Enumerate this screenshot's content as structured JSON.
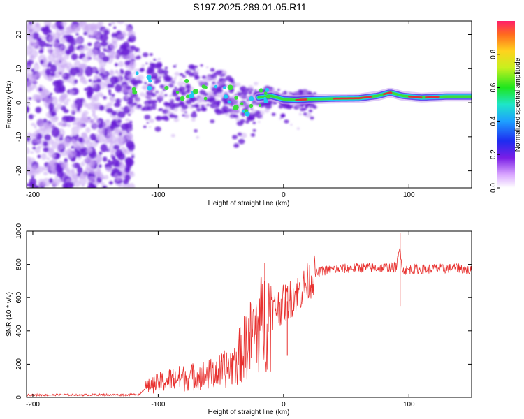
{
  "page_title": "S197.2025.289.01.05.R11",
  "colors": {
    "spectrogram_blob": "#6a1fd6",
    "spectrogram_light": "#c9a8f2",
    "ridge_green": "#3cdc3c",
    "ridge_cyan": "#22c8f0",
    "ridge_red": "#e0303a",
    "snr_line": "#e8312f"
  },
  "chart_data": [
    {
      "type": "heatmap",
      "title": "S197.2025.289.01.05.R11",
      "xlabel": "Height of straight line (km)",
      "ylabel": "Frequency (Hz)",
      "xlim": [
        -205,
        150
      ],
      "ylim": [
        -25,
        24
      ],
      "x_ticks": [
        "-200",
        "-100",
        "0",
        "100"
      ],
      "x_tick_values": [
        -200,
        -100,
        0,
        100
      ],
      "y_ticks": [
        "20",
        "10",
        "0",
        "-10",
        "-20"
      ],
      "y_tick_values": [
        20,
        10,
        0,
        -10,
        -20
      ],
      "colorbar": {
        "label": "Normalized spectral amplitude",
        "range": [
          0,
          1
        ],
        "ticks": [
          "0.0",
          "0.2",
          "0.4",
          "0.6",
          "0.8"
        ],
        "tick_values": [
          0.0,
          0.2,
          0.4,
          0.6,
          0.8
        ]
      },
      "ridge": [
        {
          "x": -120,
          "y": 6.0
        },
        {
          "x": -105,
          "y": 5.0
        },
        {
          "x": -90,
          "y": 3.0
        },
        {
          "x": -75,
          "y": 3.5
        },
        {
          "x": -60,
          "y": 4.0
        },
        {
          "x": -50,
          "y": 3.5
        },
        {
          "x": -40,
          "y": 1.0
        },
        {
          "x": -30,
          "y": -1.0
        },
        {
          "x": -20,
          "y": 1.5
        },
        {
          "x": -10,
          "y": 2.0
        },
        {
          "x": 0,
          "y": 1.0
        },
        {
          "x": 10,
          "y": 0.8
        },
        {
          "x": 20,
          "y": 1.0
        },
        {
          "x": 40,
          "y": 1.2
        },
        {
          "x": 60,
          "y": 1.3
        },
        {
          "x": 75,
          "y": 2.0
        },
        {
          "x": 85,
          "y": 3.0
        },
        {
          "x": 95,
          "y": 2.0
        },
        {
          "x": 110,
          "y": 1.5
        },
        {
          "x": 130,
          "y": 1.8
        },
        {
          "x": 150,
          "y": 1.8
        }
      ]
    },
    {
      "type": "line",
      "xlabel": "Height of straight line (km)",
      "ylabel": "SNR (10 * v/v)",
      "xlim": [
        -205,
        150
      ],
      "ylim": [
        0,
        1000
      ],
      "x_ticks": [
        "-200",
        "-100",
        "0",
        "100"
      ],
      "x_tick_values": [
        -200,
        -100,
        0,
        100
      ],
      "y_ticks": [
        "1000",
        "800",
        "600",
        "400",
        "200",
        "0"
      ],
      "y_tick_values": [
        1000,
        800,
        600,
        400,
        200,
        0
      ],
      "series": [
        {
          "name": "SNR",
          "x": [
            -205,
            -190,
            -175,
            -160,
            -145,
            -130,
            -115,
            -110,
            -100,
            -90,
            -80,
            -70,
            -60,
            -50,
            -40,
            -35,
            -30,
            -25,
            -20,
            -15,
            -10,
            -5,
            0,
            5,
            10,
            15,
            20,
            25,
            30,
            40,
            50,
            60,
            70,
            80,
            90,
            93,
            95,
            100,
            110,
            120,
            130,
            140,
            150
          ],
          "y": [
            15,
            14,
            16,
            15,
            16,
            15,
            18,
            60,
            90,
            110,
            120,
            130,
            140,
            160,
            200,
            260,
            320,
            380,
            440,
            480,
            520,
            540,
            560,
            590,
            620,
            650,
            700,
            740,
            760,
            770,
            775,
            780,
            780,
            780,
            785,
            900,
            760,
            770,
            770,
            775,
            775,
            780,
            760
          ]
        }
      ],
      "spikes": [
        {
          "x": -15,
          "y": 810
        },
        {
          "x": 93,
          "y": 990
        },
        {
          "x": 93,
          "y": 550
        },
        {
          "x": 3,
          "y": 250
        }
      ]
    }
  ]
}
